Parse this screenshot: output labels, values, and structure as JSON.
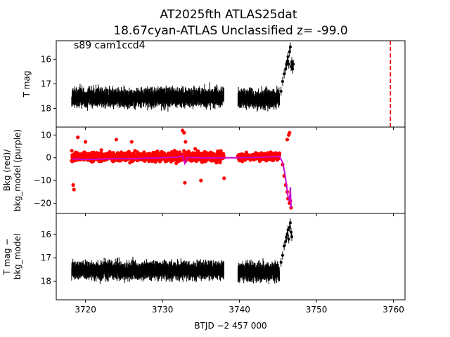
{
  "chart_data": {
    "type": "scatter",
    "title_lines": [
      "AT2025fth  ATLAS25dat",
      "18.67cyan-ATLAS Unclassified z= -99.0"
    ],
    "xlabel": "BTJD −2 457 000",
    "xlim": [
      3716.2,
      3761.5
    ],
    "xticks": [
      3720,
      3730,
      3740,
      3750,
      3760
    ],
    "grid": false,
    "panels": [
      {
        "id": "top",
        "ylabel": [
          "T mag"
        ],
        "ylim": [
          18.75,
          15.25
        ],
        "yticks": [
          16,
          17,
          18
        ],
        "annotation": "s89 cam1ccd4",
        "vline": {
          "x": 3759.6,
          "color": "#ff0000",
          "style": "dashed"
        },
        "series": [
          {
            "color": "#000000",
            "kind": "errorbar-points",
            "segments": [
              {
                "x_start": 3718.2,
                "x_end": 3738.0,
                "y_center": 17.55,
                "y_spread": 0.55,
                "err": 0.25
              },
              {
                "x_start": 3739.8,
                "x_end": 3745.2,
                "y_center": 17.6,
                "y_spread": 0.55,
                "err": 0.25
              }
            ],
            "points": [
              {
                "x": 3745.4,
                "y": 17.3
              },
              {
                "x": 3745.6,
                "y": 16.9
              },
              {
                "x": 3745.8,
                "y": 16.6
              },
              {
                "x": 3746.0,
                "y": 16.4
              },
              {
                "x": 3746.1,
                "y": 16.2
              },
              {
                "x": 3746.2,
                "y": 16.1
              },
              {
                "x": 3746.3,
                "y": 15.9
              },
              {
                "x": 3746.4,
                "y": 16.2
              },
              {
                "x": 3746.5,
                "y": 15.7
              },
              {
                "x": 3746.6,
                "y": 15.5
              },
              {
                "x": 3746.7,
                "y": 16.3
              },
              {
                "x": 3746.8,
                "y": 16.1
              },
              {
                "x": 3746.9,
                "y": 16.4
              },
              {
                "x": 3747.0,
                "y": 16.2
              }
            ]
          }
        ]
      },
      {
        "id": "middle",
        "ylabel": [
          "Bkg (red)/",
          "bkg_model (purple)"
        ],
        "ylim": [
          -24.5,
          13.5
        ],
        "yticks": [
          -20,
          -10,
          0,
          10
        ],
        "series": [
          {
            "name": "Bkg",
            "color": "#ff0000",
            "kind": "points",
            "segments": [
              {
                "x_start": 3718.2,
                "x_end": 3738.0,
                "y_center": 0.5,
                "y_spread": 5
              },
              {
                "x_start": 3739.8,
                "x_end": 3745.2,
                "y_center": 0.5,
                "y_spread": 4
              }
            ],
            "points": [
              {
                "x": 3718.4,
                "y": -12
              },
              {
                "x": 3718.5,
                "y": -14
              },
              {
                "x": 3719.0,
                "y": 9
              },
              {
                "x": 3720.0,
                "y": 7
              },
              {
                "x": 3724.0,
                "y": 8
              },
              {
                "x": 3726.0,
                "y": 7
              },
              {
                "x": 3732.6,
                "y": 12
              },
              {
                "x": 3732.8,
                "y": 11
              },
              {
                "x": 3733.0,
                "y": 7
              },
              {
                "x": 3732.9,
                "y": -11
              },
              {
                "x": 3735.0,
                "y": -10
              },
              {
                "x": 3738.0,
                "y": -9
              },
              {
                "x": 3745.6,
                "y": -3
              },
              {
                "x": 3745.8,
                "y": -8
              },
              {
                "x": 3746.0,
                "y": -12
              },
              {
                "x": 3746.2,
                "y": -15
              },
              {
                "x": 3746.3,
                "y": -18
              },
              {
                "x": 3746.5,
                "y": -20
              },
              {
                "x": 3746.6,
                "y": -19
              },
              {
                "x": 3746.7,
                "y": -22
              },
              {
                "x": 3746.2,
                "y": 8
              },
              {
                "x": 3746.4,
                "y": 10
              },
              {
                "x": 3746.5,
                "y": 11
              }
            ]
          },
          {
            "name": "bkg_model",
            "color": "#cc00cc",
            "kind": "line",
            "points": [
              {
                "x": 3718.2,
                "y": -0.5
              },
              {
                "x": 3720.0,
                "y": -0.8
              },
              {
                "x": 3722.0,
                "y": -0.6
              },
              {
                "x": 3724.0,
                "y": -0.3
              },
              {
                "x": 3726.0,
                "y": -0.5
              },
              {
                "x": 3728.0,
                "y": -0.2
              },
              {
                "x": 3730.0,
                "y": 0.0
              },
              {
                "x": 3732.0,
                "y": 0.3
              },
              {
                "x": 3732.6,
                "y": 0.8
              },
              {
                "x": 3732.9,
                "y": -2.5
              },
              {
                "x": 3733.2,
                "y": 0.2
              },
              {
                "x": 3735.0,
                "y": 0.0
              },
              {
                "x": 3738.0,
                "y": 0.0
              },
              {
                "x": 3740.0,
                "y": 0.0
              },
              {
                "x": 3742.0,
                "y": 0.2
              },
              {
                "x": 3744.0,
                "y": 0.4
              },
              {
                "x": 3745.2,
                "y": 0.6
              },
              {
                "x": 3745.6,
                "y": -2
              },
              {
                "x": 3745.9,
                "y": -7
              },
              {
                "x": 3746.1,
                "y": -12
              },
              {
                "x": 3746.3,
                "y": -17
              },
              {
                "x": 3746.5,
                "y": -19
              },
              {
                "x": 3746.6,
                "y": -13
              },
              {
                "x": 3746.7,
                "y": -22
              }
            ]
          }
        ]
      },
      {
        "id": "bottom",
        "ylabel": [
          "T mag −",
          "bkg_model"
        ],
        "ylim": [
          18.8,
          15.1
        ],
        "yticks": [
          16,
          17,
          18
        ],
        "series": [
          {
            "color": "#000000",
            "kind": "errorbar-points",
            "segments": [
              {
                "x_start": 3718.2,
                "x_end": 3738.0,
                "y_center": 17.55,
                "y_spread": 0.55,
                "err": 0.25
              },
              {
                "x_start": 3739.8,
                "x_end": 3745.2,
                "y_center": 17.6,
                "y_spread": 0.6,
                "err": 0.25
              }
            ],
            "points": [
              {
                "x": 3745.4,
                "y": 17.2
              },
              {
                "x": 3745.6,
                "y": 16.9
              },
              {
                "x": 3745.8,
                "y": 16.5
              },
              {
                "x": 3746.0,
                "y": 16.3
              },
              {
                "x": 3746.1,
                "y": 16.1
              },
              {
                "x": 3746.2,
                "y": 16.0
              },
              {
                "x": 3746.3,
                "y": 15.8
              },
              {
                "x": 3746.4,
                "y": 16.2
              },
              {
                "x": 3746.5,
                "y": 15.7
              },
              {
                "x": 3746.6,
                "y": 15.5
              },
              {
                "x": 3746.7,
                "y": 15.9
              },
              {
                "x": 3746.8,
                "y": 16.1
              }
            ]
          }
        ]
      }
    ]
  }
}
